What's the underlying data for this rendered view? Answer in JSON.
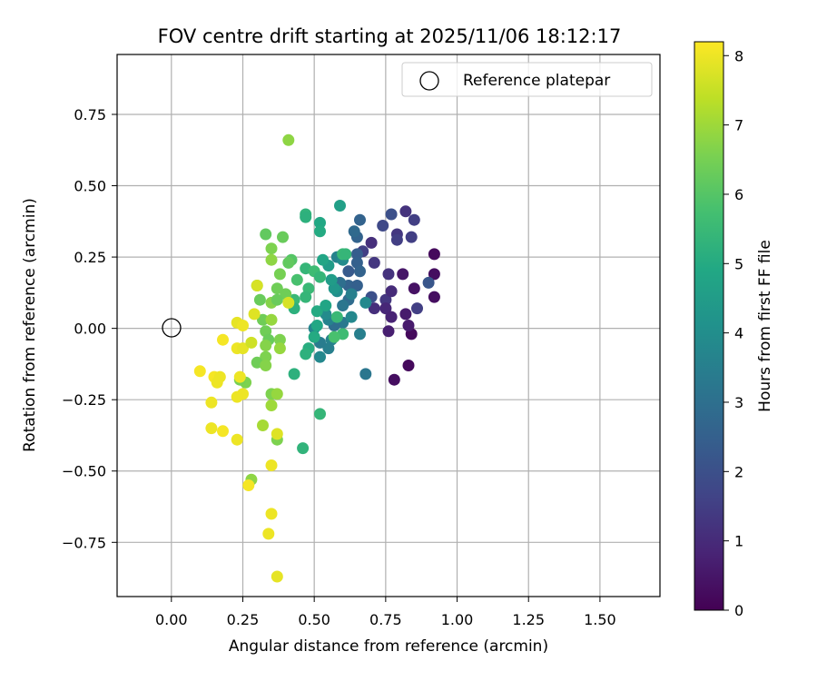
{
  "chart_data": {
    "type": "scatter",
    "title": "FOV centre drift starting at 2025/11/06 18:12:17",
    "xlabel": "Angular distance from reference (arcmin)",
    "ylabel": "Rotation from reference (arcmin)",
    "colorbar_label": "Hours from first FF file",
    "xlim": [
      -0.19,
      1.71
    ],
    "ylim": [
      -0.94,
      0.96
    ],
    "clim": [
      0,
      8.2
    ],
    "xticks": [
      0.0,
      0.25,
      0.5,
      0.75,
      1.0,
      1.25,
      1.5
    ],
    "xtick_labels": [
      "0.00",
      "0.25",
      "0.50",
      "0.75",
      "1.00",
      "1.25",
      "1.50"
    ],
    "yticks": [
      -0.75,
      -0.5,
      -0.25,
      0.0,
      0.25,
      0.5,
      0.75
    ],
    "ytick_labels": [
      "−0.75",
      "−0.50",
      "−0.25",
      "0.00",
      "0.25",
      "0.50",
      "0.75"
    ],
    "cbar_ticks": [
      0,
      1,
      2,
      3,
      4,
      5,
      6,
      7,
      8
    ],
    "cbar_tick_labels": [
      "0",
      "1",
      "2",
      "3",
      "4",
      "5",
      "6",
      "7",
      "8"
    ],
    "grid": true,
    "legend_position": "top-right",
    "colormap": "viridis",
    "reference": {
      "label": "Reference platepar",
      "x": 0.0,
      "y": 0.0
    },
    "points": [
      [
        0.92,
        0.26,
        0.2
      ],
      [
        0.92,
        0.19,
        0.3
      ],
      [
        0.92,
        0.11,
        0.3
      ],
      [
        0.85,
        0.14,
        0.4
      ],
      [
        0.84,
        -0.02,
        0.2
      ],
      [
        0.83,
        -0.13,
        0.2
      ],
      [
        0.78,
        -0.18,
        0.3
      ],
      [
        0.81,
        0.19,
        0.5
      ],
      [
        0.83,
        0.01,
        0.6
      ],
      [
        0.82,
        0.05,
        0.6
      ],
      [
        0.82,
        0.41,
        1.2
      ],
      [
        0.85,
        0.38,
        1.5
      ],
      [
        0.84,
        0.32,
        1.5
      ],
      [
        0.79,
        0.33,
        1.3
      ],
      [
        0.79,
        0.31,
        1.5
      ],
      [
        0.77,
        0.4,
        2.0
      ],
      [
        0.74,
        0.36,
        1.8
      ],
      [
        0.71,
        0.23,
        1.3
      ],
      [
        0.76,
        0.19,
        1.2
      ],
      [
        0.75,
        0.1,
        1.3
      ],
      [
        0.75,
        0.07,
        0.9
      ],
      [
        0.77,
        0.13,
        1.0
      ],
      [
        0.77,
        0.04,
        0.8
      ],
      [
        0.76,
        -0.01,
        0.7
      ],
      [
        0.71,
        0.07,
        1.1
      ],
      [
        0.9,
        0.16,
        2.2
      ],
      [
        0.86,
        0.07,
        1.5
      ],
      [
        0.7,
        0.11,
        2.0
      ],
      [
        0.7,
        0.3,
        1.1
      ],
      [
        0.67,
        0.27,
        1.5
      ],
      [
        0.66,
        0.38,
        2.6
      ],
      [
        0.65,
        0.32,
        2.6
      ],
      [
        0.64,
        0.34,
        2.8
      ],
      [
        0.65,
        0.26,
        2.4
      ],
      [
        0.65,
        0.23,
        2.5
      ],
      [
        0.66,
        0.2,
        2.6
      ],
      [
        0.62,
        0.2,
        2.3
      ],
      [
        0.62,
        0.15,
        2.6
      ],
      [
        0.65,
        0.15,
        2.5
      ],
      [
        0.62,
        0.1,
        2.9
      ],
      [
        0.58,
        0.25,
        3.6
      ],
      [
        0.6,
        0.24,
        3.9
      ],
      [
        0.63,
        0.12,
        3.5
      ],
      [
        0.59,
        0.16,
        3.0
      ],
      [
        0.6,
        0.08,
        3.2
      ],
      [
        0.6,
        0.02,
        3.3
      ],
      [
        0.57,
        0.01,
        3.0
      ],
      [
        0.55,
        0.03,
        3.6
      ],
      [
        0.54,
        0.05,
        3.9
      ],
      [
        0.56,
        -0.04,
        3.6
      ],
      [
        0.55,
        -0.07,
        3.5
      ],
      [
        0.52,
        -0.05,
        3.4
      ],
      [
        0.5,
        0.0,
        3.7
      ],
      [
        0.52,
        -0.1,
        3.8
      ],
      [
        0.66,
        -0.02,
        3.5
      ],
      [
        0.68,
        -0.16,
        3.2
      ],
      [
        0.68,
        0.09,
        3.8
      ],
      [
        0.63,
        0.04,
        3.8
      ],
      [
        0.58,
        0.13,
        4.0
      ],
      [
        0.57,
        0.14,
        4.3
      ],
      [
        0.56,
        0.17,
        4.5
      ],
      [
        0.55,
        0.22,
        4.5
      ],
      [
        0.53,
        0.24,
        4.8
      ],
      [
        0.59,
        0.43,
        4.6
      ],
      [
        0.52,
        0.37,
        4.9
      ],
      [
        0.52,
        0.34,
        5.0
      ],
      [
        0.47,
        0.4,
        5.3
      ],
      [
        0.47,
        0.39,
        5.2
      ],
      [
        0.47,
        0.21,
        5.4
      ],
      [
        0.5,
        0.2,
        5.6
      ],
      [
        0.52,
        0.18,
        5.4
      ],
      [
        0.48,
        0.14,
        5.5
      ],
      [
        0.47,
        0.11,
        5.4
      ],
      [
        0.44,
        0.17,
        5.8
      ],
      [
        0.43,
        0.1,
        5.5
      ],
      [
        0.43,
        0.07,
        5.2
      ],
      [
        0.51,
        0.06,
        5.0
      ],
      [
        0.54,
        0.08,
        4.8
      ],
      [
        0.51,
        0.01,
        4.9
      ],
      [
        0.5,
        -0.03,
        5.0
      ],
      [
        0.48,
        -0.07,
        5.1
      ],
      [
        0.47,
        -0.09,
        5.2
      ],
      [
        0.52,
        -0.3,
        5.4
      ],
      [
        0.43,
        -0.16,
        5.2
      ],
      [
        0.46,
        -0.42,
        5.3
      ],
      [
        0.6,
        0.26,
        5.5
      ],
      [
        0.61,
        0.26,
        5.4
      ],
      [
        0.58,
        0.04,
        5.5
      ],
      [
        0.6,
        -0.02,
        5.6
      ],
      [
        0.57,
        -0.03,
        5.8
      ],
      [
        0.42,
        0.24,
        6.0
      ],
      [
        0.41,
        0.23,
        6.2
      ],
      [
        0.4,
        0.12,
        6.4
      ],
      [
        0.39,
        0.32,
        6.3
      ],
      [
        0.33,
        0.33,
        6.2
      ],
      [
        0.35,
        0.28,
        6.6
      ],
      [
        0.35,
        0.24,
        6.8
      ],
      [
        0.38,
        0.19,
        6.5
      ],
      [
        0.37,
        0.14,
        6.4
      ],
      [
        0.35,
        0.09,
        6.7
      ],
      [
        0.37,
        0.1,
        6.3
      ],
      [
        0.3,
        0.15,
        6.5
      ],
      [
        0.31,
        0.1,
        6.3
      ],
      [
        0.32,
        0.03,
        6.4
      ],
      [
        0.35,
        0.03,
        6.9
      ],
      [
        0.33,
        -0.01,
        6.4
      ],
      [
        0.34,
        -0.04,
        6.3
      ],
      [
        0.33,
        -0.06,
        6.7
      ],
      [
        0.38,
        -0.04,
        6.6
      ],
      [
        0.38,
        -0.07,
        6.9
      ],
      [
        0.33,
        -0.1,
        6.6
      ],
      [
        0.3,
        -0.12,
        6.4
      ],
      [
        0.33,
        -0.13,
        6.7
      ],
      [
        0.26,
        -0.19,
        6.6
      ],
      [
        0.24,
        -0.18,
        6.5
      ],
      [
        0.35,
        -0.23,
        6.6
      ],
      [
        0.37,
        -0.23,
        6.9
      ],
      [
        0.35,
        -0.27,
        7.0
      ],
      [
        0.32,
        -0.34,
        7.1
      ],
      [
        0.37,
        -0.39,
        6.6
      ],
      [
        0.28,
        -0.53,
        6.8
      ],
      [
        0.41,
        0.66,
        6.8
      ],
      [
        0.41,
        0.09,
        7.7
      ],
      [
        0.29,
        0.05,
        7.8
      ],
      [
        0.3,
        0.15,
        7.7
      ],
      [
        0.23,
        0.02,
        7.9
      ],
      [
        0.25,
        0.01,
        8.0
      ],
      [
        0.18,
        -0.04,
        8.1
      ],
      [
        0.23,
        -0.07,
        8.0
      ],
      [
        0.25,
        -0.07,
        7.9
      ],
      [
        0.28,
        -0.05,
        7.6
      ],
      [
        0.24,
        -0.17,
        8.0
      ],
      [
        0.15,
        -0.17,
        8.1
      ],
      [
        0.17,
        -0.17,
        8.0
      ],
      [
        0.16,
        -0.19,
        8.0
      ],
      [
        0.1,
        -0.15,
        8.1
      ],
      [
        0.25,
        -0.23,
        8.0
      ],
      [
        0.23,
        -0.24,
        8.0
      ],
      [
        0.14,
        -0.26,
        8.0
      ],
      [
        0.14,
        -0.35,
        8.0
      ],
      [
        0.18,
        -0.36,
        8.1
      ],
      [
        0.23,
        -0.39,
        8.0
      ],
      [
        0.37,
        -0.37,
        7.8
      ],
      [
        0.35,
        -0.48,
        8.0
      ],
      [
        0.27,
        -0.55,
        8.1
      ],
      [
        0.35,
        -0.65,
        8.0
      ],
      [
        0.34,
        -0.72,
        8.0
      ],
      [
        0.37,
        -0.87,
        7.9
      ]
    ]
  }
}
